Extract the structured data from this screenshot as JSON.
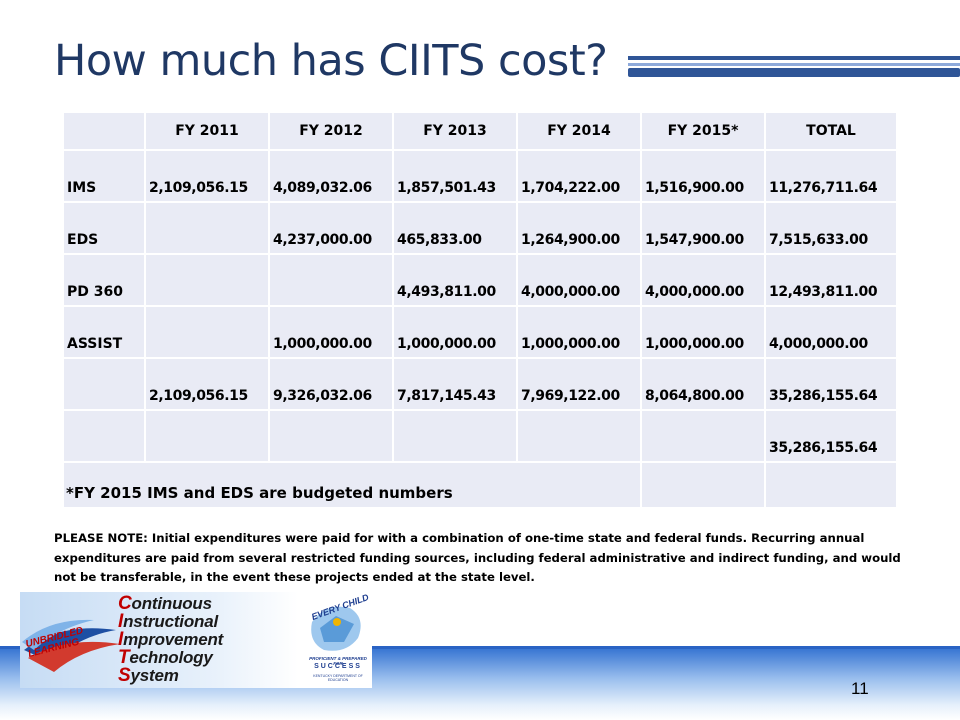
{
  "slide": {
    "title": "How much has CIITS cost?",
    "page_number": "11"
  },
  "table": {
    "header": [
      "",
      "FY 2011",
      "FY 2012",
      "FY 2013",
      "FY 2014",
      "FY 2015*",
      "TOTAL"
    ],
    "rows": [
      [
        "IMS",
        "2,109,056.15",
        "4,089,032.06",
        "1,857,501.43",
        "1,704,222.00",
        "1,516,900.00",
        "11,276,711.64"
      ],
      [
        "EDS",
        "",
        "4,237,000.00",
        "465,833.00",
        "1,264,900.00",
        "1,547,900.00",
        "7,515,633.00"
      ],
      [
        "PD 360",
        "",
        "",
        "4,493,811.00",
        "4,000,000.00",
        "4,000,000.00",
        "12,493,811.00"
      ],
      [
        "ASSIST",
        "",
        "1,000,000.00",
        "1,000,000.00",
        "1,000,000.00",
        "1,000,000.00",
        "4,000,000.00"
      ],
      [
        "",
        "2,109,056.15",
        "9,326,032.06",
        "7,817,145.43",
        "7,969,122.00",
        "8,064,800.00",
        "35,286,155.64"
      ],
      [
        "",
        "",
        "",
        "",
        "",
        "",
        "35,286,155.64"
      ]
    ],
    "footnote": "*FY 2015 IMS and EDS are budgeted numbers"
  },
  "note": {
    "text": "PLEASE NOTE: Initial expenditures were paid for with a combination of one-time state and federal funds.  Recurring annual expenditures are paid from several restricted funding sources, including federal administrative and indirect funding, and would not be transferable, in the event these projects ended at the state level."
  },
  "logo": {
    "swoosh_text": "UNBRIDLED LEARNING",
    "lines": [
      {
        "cap": "C",
        "rest": "ontinuous"
      },
      {
        "cap": "I",
        "rest": "nstructional"
      },
      {
        "cap": "I",
        "rest": "mprovement"
      },
      {
        "cap": "T",
        "rest": "echnology"
      },
      {
        "cap": "S",
        "rest": "ystem"
      }
    ],
    "badge_top": "EVERY CHILD",
    "badge_mid": "PROFICIENT & PREPARED FOR",
    "badge_success": "SUCCESS",
    "badge_bottom": "KENTUCKY DEPARTMENT OF EDUCATION"
  },
  "colors": {
    "title": "#1f3864",
    "cell_bg": "#e9ebf5",
    "band_blue": "#2f6fd0"
  }
}
